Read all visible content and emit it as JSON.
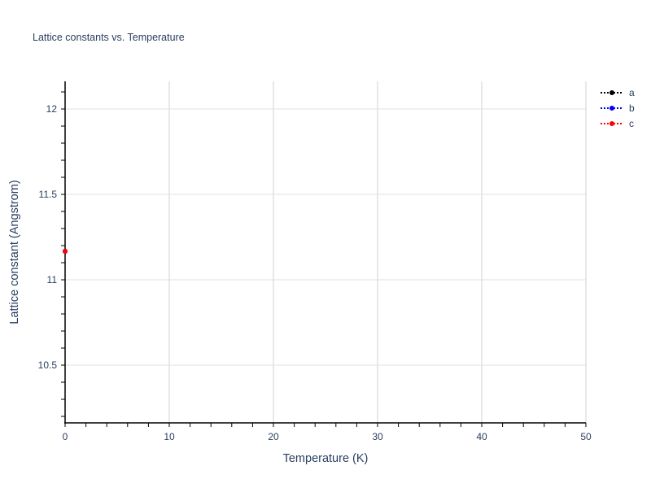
{
  "chart_data": {
    "type": "line",
    "title": "Lattice constants vs. Temperature",
    "xlabel": "Temperature (K)",
    "ylabel": "Lattice constant (Angstrom)",
    "xlim": [
      0,
      50
    ],
    "ylim": [
      10.162,
      12.162
    ],
    "xticks": [
      0,
      10,
      20,
      30,
      40,
      50
    ],
    "xtick_labels": [
      "0",
      "10",
      "20",
      "30",
      "40",
      "50"
    ],
    "yticks": [
      10.5,
      11,
      11.5,
      12
    ],
    "ytick_labels": [
      "10.5",
      "11",
      "11.5",
      "12"
    ],
    "grid": true,
    "legend_position": "top-right",
    "series": [
      {
        "name": "a",
        "color": "#000000",
        "line": "dot",
        "x": [
          0
        ],
        "y": [
          11.167
        ]
      },
      {
        "name": "b",
        "color": "#0000ff",
        "line": "dot",
        "x": [
          0
        ],
        "y": [
          11.167
        ]
      },
      {
        "name": "c",
        "color": "#ff0000",
        "line": "dot",
        "x": [
          0
        ],
        "y": [
          11.167
        ]
      }
    ]
  }
}
